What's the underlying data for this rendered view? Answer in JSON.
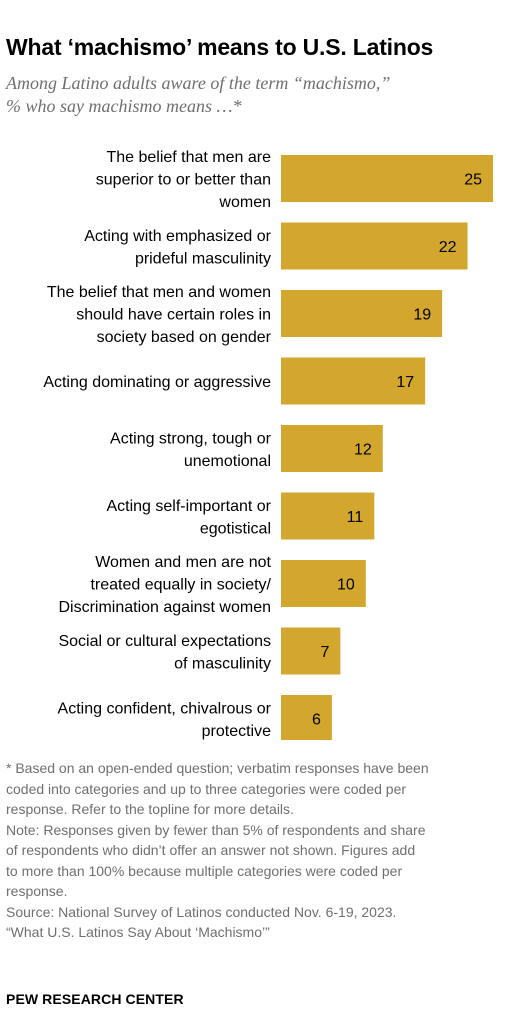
{
  "header": {
    "title": "What ‘machismo’ means to U.S. Latinos",
    "subtitle_lines": [
      "Among Latino adults aware of the term “machismo,”",
      "% who say machismo means …*"
    ]
  },
  "chart_data": {
    "type": "bar",
    "orientation": "horizontal",
    "bar_color": "#D3A62E",
    "categories": [
      [
        "The belief that men are",
        "superior to or better than",
        "women"
      ],
      [
        "Acting with emphasized or",
        "prideful masculinity"
      ],
      [
        "The belief that men and women",
        "should have certain roles in",
        "society based on gender"
      ],
      [
        "Acting dominating or aggressive"
      ],
      [
        "Acting strong, tough or",
        "unemotional"
      ],
      [
        "Acting self-important or",
        "egotistical"
      ],
      [
        "Women and men are not",
        "treated equally in society/",
        "Discrimination against women"
      ],
      [
        "Social or cultural expectations",
        "of masculinity"
      ],
      [
        "Acting confident, chivalrous or",
        "protective"
      ]
    ],
    "values": [
      25,
      22,
      19,
      17,
      12,
      11,
      10,
      7,
      6
    ],
    "xlim": [
      0,
      25
    ],
    "grid": false,
    "legend": "none"
  },
  "notes": {
    "lines": [
      "* Based on an open-ended question; verbatim responses have been",
      "coded into categories and up to three categories were coded per",
      "response. Refer to the topline for more details.",
      "Note: Responses given by fewer than 5% of respondents and share",
      "of respondents who didn’t offer an answer not shown. Figures add",
      "to more than 100% because multiple categories were coded per",
      "response.",
      "Source: National Survey of Latinos conducted Nov. 6-19, 2023.",
      "“What U.S. Latinos Say About ‘Machismo’”"
    ]
  },
  "footer": {
    "brand": "PEW RESEARCH CENTER"
  }
}
